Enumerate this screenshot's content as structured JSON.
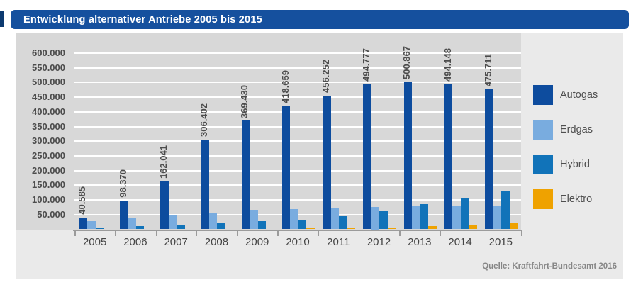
{
  "title": "Entwicklung alternativer Antriebe 2005 bis 2015",
  "source": "Quelle: Kraftfahrt-Bundesamt 2016",
  "colors": {
    "banner": "#15509e",
    "ribbon_tail": "#0c3a70",
    "panel": "#eaeaea",
    "plot_bg": "#d8d8d8",
    "gridline": "#ffffff",
    "axis": "#9b9b9b",
    "value_text": "#4c4c4c",
    "year_text": "#454545",
    "legend_text": "#4f4f4f",
    "source_text": "#868686",
    "autogas": "#0d4c9e",
    "erdgas": "#79acdf",
    "hybrid": "#1173b9",
    "elektro": "#efa200"
  },
  "chart_data": {
    "type": "bar",
    "title": "Entwicklung alternativer Antriebe 2005 bis 2015",
    "categories": [
      "2005",
      "2006",
      "2007",
      "2008",
      "2009",
      "2010",
      "2011",
      "2012",
      "2013",
      "2014",
      "2015"
    ],
    "series": [
      {
        "name": "Autogas",
        "color": "#0d4c9e",
        "values": [
          40585,
          98370,
          162041,
          306402,
          369430,
          418659,
          456252,
          494777,
          500867,
          494148,
          475711
        ],
        "value_labels": [
          "40.585",
          "98.370",
          "162.041",
          "306.402",
          "369.430",
          "418.659",
          "456.252",
          "494.777",
          "500.867",
          "494.148",
          "475.711"
        ]
      },
      {
        "name": "Erdgas",
        "color": "#79acdf",
        "values": [
          28000,
          39000,
          47000,
          57000,
          66000,
          69000,
          73000,
          75000,
          79000,
          80000,
          81000
        ],
        "values_estimated": true
      },
      {
        "name": "Hybrid",
        "color": "#1173b9",
        "values": [
          5500,
          10000,
          14000,
          20000,
          27000,
          32000,
          45000,
          62000,
          85000,
          105000,
          130000
        ],
        "values_estimated": true
      },
      {
        "name": "Elektro",
        "color": "#efa200",
        "values": [
          0,
          0,
          0,
          0,
          0,
          3000,
          5000,
          7000,
          10000,
          16500,
          22500
        ],
        "values_estimated": true
      }
    ],
    "xlabel": "",
    "ylabel": "",
    "ylim": [
      0,
      600000
    ],
    "ytick_step": 50000,
    "ytick_labels": [
      "50.000",
      "100.000",
      "150.000",
      "200.000",
      "250.000",
      "300.000",
      "350.000",
      "400.000",
      "450.000",
      "500.000",
      "550.000",
      "600.000"
    ],
    "grid": true,
    "legend_position": "right",
    "legend_entries": [
      "Autogas",
      "Erdgas",
      "Hybrid",
      "Elektro"
    ]
  }
}
